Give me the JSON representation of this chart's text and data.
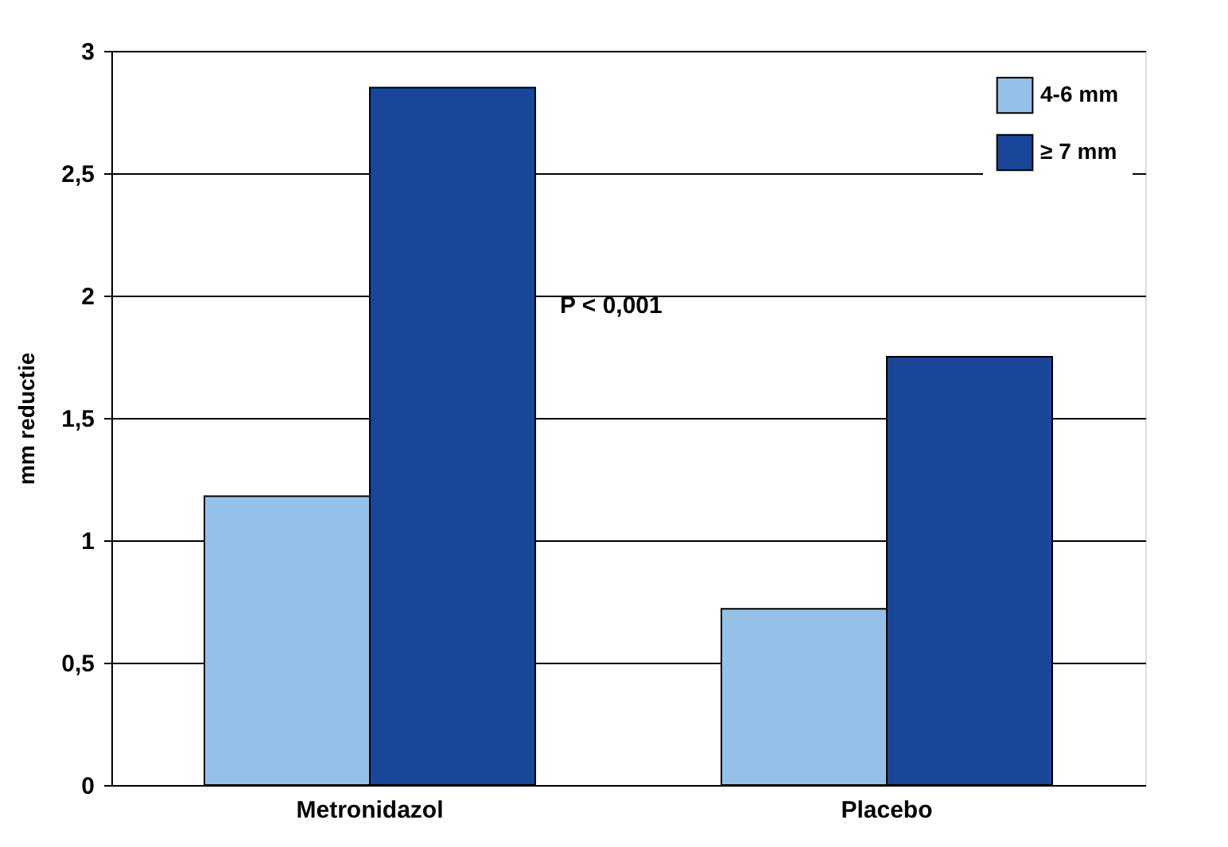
{
  "chart_data": {
    "type": "bar",
    "ylabel": "mm reductie",
    "categories": [
      "Metronidazol",
      "Placebo"
    ],
    "series": [
      {
        "name": "4-6 mm",
        "color": "#94c1e8",
        "values": [
          1.18,
          0.72
        ]
      },
      {
        "name": "≥ 7 mm",
        "color": "#1a4699",
        "values": [
          2.85,
          1.75
        ]
      }
    ],
    "ylim": [
      0,
      3
    ],
    "yticks": [
      0,
      {
        "value": 0.5,
        "label": "0,5"
      },
      1,
      {
        "value": 1.5,
        "label": "1,5"
      },
      2,
      {
        "value": 2.5,
        "label": "2,5"
      },
      3
    ],
    "grid": "y",
    "legend": "top right",
    "annotations": [
      "P < 0,001"
    ]
  }
}
